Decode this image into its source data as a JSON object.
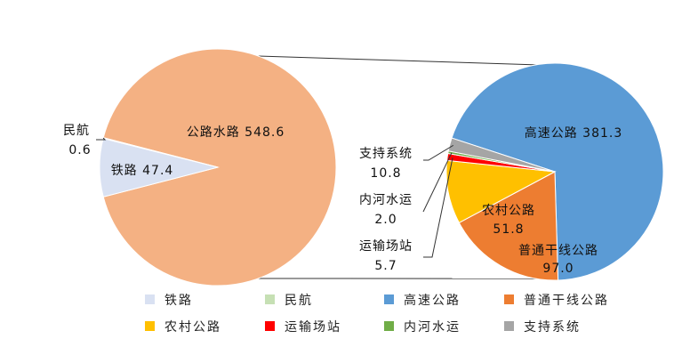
{
  "chart_data": [
    {
      "type": "pie",
      "categories": [
        "公路水路",
        "铁路",
        "民航"
      ],
      "values": [
        548.6,
        47.4,
        0.6
      ],
      "colors": [
        "#F4B183",
        "#D9E1F2",
        "#C6E0B4"
      ],
      "labels": [
        {
          "name": "公路水路",
          "value": "548.6"
        },
        {
          "name": "铁路",
          "value": "47.4"
        },
        {
          "name": "民航",
          "value": "0.6"
        }
      ]
    },
    {
      "type": "pie",
      "categories": [
        "高速公路",
        "普通干线公路",
        "农村公路",
        "运输场站",
        "内河水运",
        "支持系统"
      ],
      "values": [
        381.3,
        97.0,
        51.8,
        5.7,
        2.0,
        10.8
      ],
      "colors": [
        "#5B9BD5",
        "#ED7D31",
        "#FFC000",
        "#FF0000",
        "#70AD47",
        "#A5A5A5"
      ],
      "labels": [
        {
          "name": "高速公路",
          "value": "381.3"
        },
        {
          "name": "普通干线公路",
          "value": "97.0"
        },
        {
          "name": "农村公路",
          "value": "51.8"
        },
        {
          "name": "运输场站",
          "value": "5.7"
        },
        {
          "name": "内河水运",
          "value": "2.0"
        },
        {
          "name": "支持系统",
          "value": "10.8"
        }
      ]
    }
  ],
  "legend": {
    "placement": "bottom",
    "items": [
      {
        "label": "铁路",
        "color": "#D9E1F2"
      },
      {
        "label": "民航",
        "color": "#C6E0B4"
      },
      {
        "label": "高速公路",
        "color": "#5B9BD5"
      },
      {
        "label": "普通干线公路",
        "color": "#ED7D31"
      },
      {
        "label": "农村公路",
        "color": "#FFC000"
      },
      {
        "label": "运输场站",
        "color": "#FF0000"
      },
      {
        "label": "内河水运",
        "color": "#70AD47"
      },
      {
        "label": "支持系统",
        "color": "#A5A5A5"
      }
    ]
  }
}
